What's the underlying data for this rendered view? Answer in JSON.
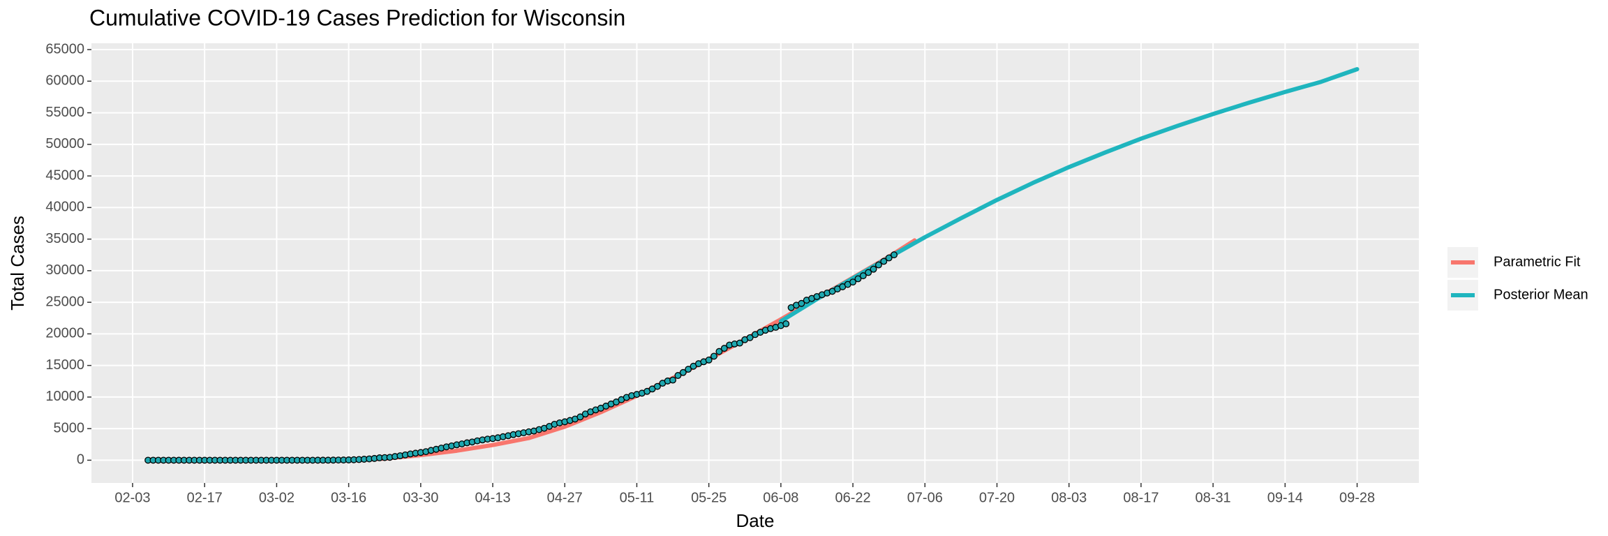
{
  "chart_data": {
    "type": "line",
    "title": "Cumulative COVID-19 Cases Prediction for Wisconsin",
    "x_label": "Date",
    "y_label": "Total Cases",
    "xlim": [
      "01-26",
      "10-10"
    ],
    "xticks": [
      "02-03",
      "02-17",
      "03-02",
      "03-16",
      "03-30",
      "04-13",
      "04-27",
      "05-11",
      "05-25",
      "06-08",
      "06-22",
      "07-06",
      "07-20",
      "08-03",
      "08-17",
      "08-31",
      "09-14",
      "09-28"
    ],
    "ylim": [
      -3600,
      66000
    ],
    "yticks": [
      0,
      5000,
      10000,
      15000,
      20000,
      25000,
      30000,
      35000,
      40000,
      45000,
      50000,
      55000,
      60000,
      65000
    ],
    "grid": true,
    "legend": "right",
    "series": [
      {
        "name": "Parametric Fit",
        "color": "#F8766D",
        "x": [
          "03-16",
          "03-23",
          "03-30",
          "04-06",
          "04-13",
          "04-20",
          "04-27",
          "05-04",
          "05-11",
          "05-18",
          "05-25",
          "06-01",
          "06-08",
          "06-15",
          "06-22",
          "06-29",
          "07-04"
        ],
        "values": [
          50,
          250,
          800,
          1500,
          2400,
          3500,
          5300,
          7600,
          10200,
          13000,
          16000,
          19100,
          22300,
          25600,
          28900,
          32200,
          34800
        ]
      },
      {
        "name": "Posterior Mean",
        "color": "#1FB5BE",
        "x": [
          "06-08",
          "06-15",
          "06-22",
          "06-29",
          "07-06",
          "07-13",
          "07-20",
          "07-27",
          "08-03",
          "08-10",
          "08-17",
          "08-24",
          "08-31",
          "09-07",
          "09-14",
          "09-21",
          "09-28"
        ],
        "values": [
          22000,
          25500,
          28800,
          32100,
          35300,
          38300,
          41200,
          43900,
          46400,
          48700,
          50900,
          52900,
          54800,
          56600,
          58300,
          59900,
          61900
        ]
      }
    ],
    "points": {
      "color": "#1FA8B0",
      "x": [
        "02-06",
        "02-07",
        "02-08",
        "02-09",
        "02-10",
        "02-11",
        "02-12",
        "02-13",
        "02-14",
        "02-15",
        "02-16",
        "02-17",
        "02-18",
        "02-19",
        "02-20",
        "02-21",
        "02-22",
        "02-23",
        "02-24",
        "02-25",
        "02-26",
        "02-27",
        "02-28",
        "02-29",
        "03-01",
        "03-02",
        "03-03",
        "03-04",
        "03-05",
        "03-06",
        "03-07",
        "03-08",
        "03-09",
        "03-10",
        "03-11",
        "03-12",
        "03-13",
        "03-14",
        "03-15",
        "03-16",
        "03-17",
        "03-18",
        "03-19",
        "03-20",
        "03-21",
        "03-22",
        "03-23",
        "03-24",
        "03-25",
        "03-26",
        "03-27",
        "03-28",
        "03-29",
        "03-30",
        "03-31",
        "04-01",
        "04-02",
        "04-03",
        "04-04",
        "04-05",
        "04-06",
        "04-07",
        "04-08",
        "04-09",
        "04-10",
        "04-11",
        "04-12",
        "04-13",
        "04-14",
        "04-15",
        "04-16",
        "04-17",
        "04-18",
        "04-19",
        "04-20",
        "04-21",
        "04-22",
        "04-23",
        "04-24",
        "04-25",
        "04-26",
        "04-27",
        "04-28",
        "04-29",
        "04-30",
        "05-01",
        "05-02",
        "05-03",
        "05-04",
        "05-05",
        "05-06",
        "05-07",
        "05-08",
        "05-09",
        "05-10",
        "05-11",
        "05-12",
        "05-13",
        "05-14",
        "05-15",
        "05-16",
        "05-17",
        "05-18",
        "05-19",
        "05-20",
        "05-21",
        "05-22",
        "05-23",
        "05-24",
        "05-25",
        "05-26",
        "05-27",
        "05-28",
        "05-29",
        "05-30",
        "05-31",
        "06-01",
        "06-02",
        "06-03",
        "06-04",
        "06-05",
        "06-06",
        "06-07",
        "06-08",
        "06-09",
        "06-10",
        "06-11",
        "06-12",
        "06-13",
        "06-14",
        "06-15",
        "06-16",
        "06-17",
        "06-18",
        "06-19",
        "06-20",
        "06-21",
        "06-22",
        "06-23",
        "06-24",
        "06-25",
        "06-26",
        "06-27",
        "06-28",
        "06-29",
        "06-30"
      ],
      "values": [
        1,
        1,
        1,
        1,
        1,
        1,
        1,
        1,
        1,
        1,
        1,
        1,
        1,
        1,
        1,
        1,
        1,
        1,
        1,
        1,
        1,
        1,
        1,
        1,
        1,
        1,
        1,
        1,
        1,
        1,
        1,
        1,
        1,
        3,
        6,
        8,
        19,
        27,
        32,
        47,
        72,
        106,
        155,
        206,
        281,
        381,
        416,
        457,
        585,
        707,
        842,
        989,
        1112,
        1221,
        1351,
        1550,
        1730,
        1916,
        2112,
        2267,
        2440,
        2578,
        2756,
        2885,
        3068,
        3213,
        3341,
        3428,
        3555,
        3721,
        3875,
        4053,
        4199,
        4346,
        4499,
        4620,
        4845,
        5052,
        5356,
        5687,
        5911,
        6081,
        6289,
        6520,
        6854,
        7314,
        7660,
        7964,
        8236,
        8566,
        8901,
        9215,
        9590,
        9939,
        10219,
        10418,
        10611,
        10902,
        11275,
        11685,
        12187,
        12543,
        12687,
        13413,
        13885,
        14396,
        14877,
        15277,
        15584,
        15863,
        16462,
        17211,
        17707,
        18230,
        18403,
        18543,
        19079,
        19400,
        19892,
        20249,
        20571,
        20835,
        21038,
        21308,
        21593,
        24154,
        24539,
        24819,
        25331,
        25608,
        25907,
        26197,
        26472,
        26735,
        27112,
        27459,
        27826,
        28201,
        28720,
        29198,
        29712,
        30238,
        30915,
        31479,
        32020,
        32511
      ]
    }
  }
}
